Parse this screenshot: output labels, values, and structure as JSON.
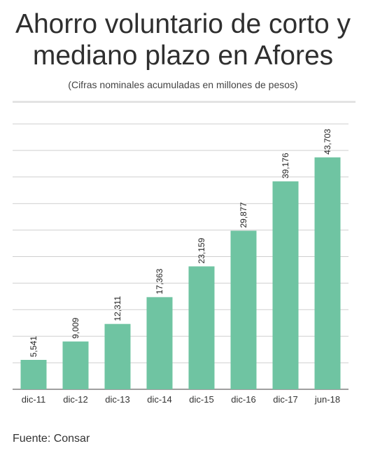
{
  "title": "Ahorro voluntario de corto y mediano plazo en Afores",
  "subtitle": "(Cifras nominales acumuladas en millones de pesos)",
  "footer": "Fuente: Consar",
  "colors": {
    "bar": "#6fc4a2",
    "grid": "#cfcfcf",
    "axis": "#666666"
  },
  "chart_data": {
    "type": "bar",
    "categories": [
      "dic-11",
      "dic-12",
      "dic-13",
      "dic-14",
      "dic-15",
      "dic-16",
      "dic-17",
      "jun-18"
    ],
    "values": [
      5541,
      9009,
      12311,
      17363,
      23159,
      29877,
      39176,
      43703
    ],
    "labels": [
      "5,541",
      "9,009",
      "12,311",
      "17,363",
      "23,159",
      "29,877",
      "39,176",
      "43,703"
    ],
    "ylim": [
      0,
      50000
    ],
    "grid": true,
    "y_ticks_visible": false
  }
}
